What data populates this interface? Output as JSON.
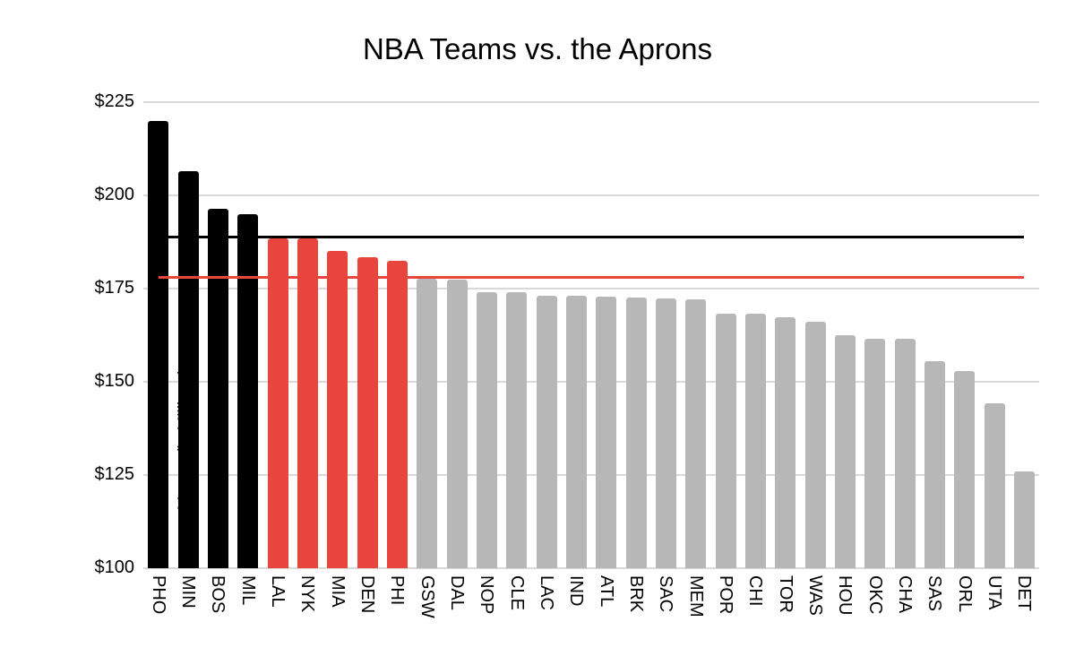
{
  "chart_data": {
    "type": "bar",
    "title": "NBA Teams vs. the Aprons",
    "xlabel": "",
    "ylabel": "Money (in Millions)",
    "ylim": [
      100,
      225
    ],
    "grid": true,
    "legend": "none",
    "y_ticks": [
      {
        "value": 100,
        "label": "$100"
      },
      {
        "value": 125,
        "label": "$125"
      },
      {
        "value": 150,
        "label": "$150"
      },
      {
        "value": 175,
        "label": "$175"
      },
      {
        "value": 200,
        "label": "$200"
      },
      {
        "value": 225,
        "label": "$225"
      }
    ],
    "categories": [
      "PHO",
      "MIN",
      "BOS",
      "MIL",
      "LAL",
      "NYK",
      "MIA",
      "DEN",
      "PHI",
      "GSW",
      "DAL",
      "NOP",
      "CLE",
      "LAC",
      "IND",
      "ATL",
      "BRK",
      "SAC",
      "MEM",
      "POR",
      "CHI",
      "TOR",
      "WAS",
      "HOU",
      "OKC",
      "CHA",
      "SAS",
      "ORL",
      "UTA",
      "DET"
    ],
    "values": [
      220.0,
      206.5,
      196.5,
      195.0,
      188.5,
      188.4,
      185.2,
      183.3,
      182.5,
      177.7,
      177.5,
      174.1,
      174.0,
      173.2,
      173.1,
      172.8,
      172.6,
      172.3,
      172.0,
      168.3,
      168.2,
      167.4,
      166.0,
      162.6,
      161.6,
      161.5,
      155.5,
      153.0,
      144.3,
      126.0
    ],
    "bar_color_groups": [
      "black",
      "black",
      "black",
      "black",
      "red",
      "red",
      "red",
      "red",
      "red",
      "gray",
      "gray",
      "gray",
      "gray",
      "gray",
      "gray",
      "gray",
      "gray",
      "gray",
      "gray",
      "gray",
      "gray",
      "gray",
      "gray",
      "gray",
      "gray",
      "gray",
      "gray",
      "gray",
      "gray",
      "gray"
    ],
    "group_colors": {
      "black": "#000000",
      "red": "#e8453c",
      "gray": "#b7b7b7"
    },
    "reference_lines": [
      {
        "name": "second-apron-line",
        "value": 188.9,
        "color": "#000000"
      },
      {
        "name": "first-apron-line",
        "value": 178.1,
        "color": "#e8453c"
      }
    ],
    "gridline_color": "#d9d9d9",
    "background_color": "#ffffff"
  }
}
